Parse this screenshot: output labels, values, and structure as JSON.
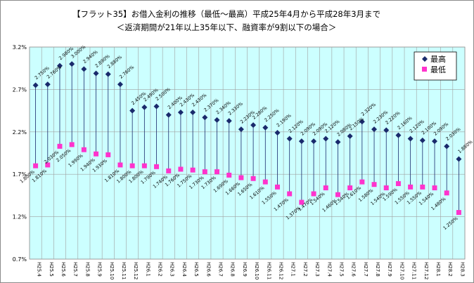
{
  "chart_data": {
    "type": "line",
    "title": "【フラット35】お借入金利の推移（最低～最高）平成25年4月から平成28年3月まで",
    "subtitle": "＜返済期間が21年以上35年以下、融資率が9割以下の場合＞",
    "xlabel": "",
    "ylabel": "",
    "ylim": [
      0.7,
      3.2
    ],
    "yticks": [
      "0.7%",
      "1.2%",
      "1.7%",
      "2.2%",
      "2.7%",
      "3.2%"
    ],
    "ytick_values": [
      0.7,
      1.2,
      1.7,
      2.2,
      2.7,
      3.2
    ],
    "grid": true,
    "legend_position": "top-right",
    "categories": [
      "H25.4",
      "H25.5",
      "H25.6",
      "H25.7",
      "H25.8",
      "H25.9",
      "H25.10",
      "H25.11",
      "H25.12",
      "H26.1",
      "H26.2",
      "H26.3",
      "H26.4",
      "H26.5",
      "H26.6",
      "H26.7",
      "H26.8",
      "H26.9",
      "H26.10",
      "H26.11",
      "H26.12",
      "H27.1",
      "H27.2",
      "H27.3",
      "H27.4",
      "H27.5",
      "H27.6",
      "H27.7",
      "H27.8",
      "H27.9",
      "H27.10",
      "H27.11",
      "H27.12",
      "H28.1",
      "H28.2",
      "H28.3"
    ],
    "series": [
      {
        "name": "最高",
        "values": [
          2.75,
          2.76,
          2.98,
          3.0,
          2.94,
          2.89,
          2.88,
          2.76,
          2.45,
          2.49,
          2.5,
          2.4,
          2.43,
          2.43,
          2.37,
          2.34,
          2.33,
          2.23,
          2.28,
          2.25,
          2.19,
          2.12,
          2.09,
          2.09,
          2.12,
          2.08,
          2.15,
          2.32,
          2.23,
          2.22,
          2.16,
          2.12,
          2.1,
          2.09,
          2.03,
          1.88
        ],
        "labels": [
          "2.750%",
          "2.760%",
          "2.980%",
          "3.000%",
          "2.940%",
          "2.890%",
          "2.880%",
          "2.760%",
          "2.450%",
          "2.490%",
          "2.500%",
          "2.400%",
          "2.430%",
          "2.430%",
          "2.370%",
          "2.340%",
          "2.330%",
          "2.230%",
          "2.280%",
          "2.250%",
          "2.190%",
          "2.120%",
          "2.090%",
          "2.090%",
          "2.120%",
          "2.080%",
          "2.150%",
          "2.320%",
          "2.230%",
          "2.220%",
          "2.160%",
          "2.120%",
          "2.100%",
          "2.090%",
          "2.030%",
          "1.880%"
        ]
      },
      {
        "name": "最低",
        "values": [
          1.8,
          1.81,
          2.03,
          2.05,
          1.99,
          1.94,
          1.93,
          1.81,
          1.8,
          1.8,
          1.79,
          1.74,
          1.76,
          1.75,
          1.73,
          1.73,
          1.69,
          1.66,
          1.65,
          1.61,
          1.55,
          1.47,
          1.37,
          1.47,
          1.54,
          1.46,
          1.54,
          1.61,
          1.58,
          1.54,
          1.59,
          1.55,
          1.55,
          1.54,
          1.48,
          1.25
        ],
        "labels": [
          "1.800%",
          "1.810%",
          "2.030%",
          "2.050%",
          "1.990%",
          "1.940%",
          "1.930%",
          "1.810%",
          "1.800%",
          "1.800%",
          "1.790%",
          "1.740%",
          "1.760%",
          "1.750%",
          "1.730%",
          "1.730%",
          "1.690%",
          "1.660%",
          "1.650%",
          "1.610%",
          "1.550%",
          "1.470%",
          "1.370%",
          "1.470%",
          "1.540%",
          "1.460%",
          "1.540%",
          "1.610%",
          "1.580%",
          "1.540%",
          "1.590%",
          "1.550%",
          "1.550%",
          "1.540%",
          "1.480%",
          "1.250%"
        ]
      }
    ]
  },
  "colors": {
    "plot_background": "#ccffff",
    "max_marker": "#1a2a6c",
    "min_marker": "#ff33cc",
    "range_line": "#1a2a6c",
    "grid": "#a0a0a0"
  }
}
